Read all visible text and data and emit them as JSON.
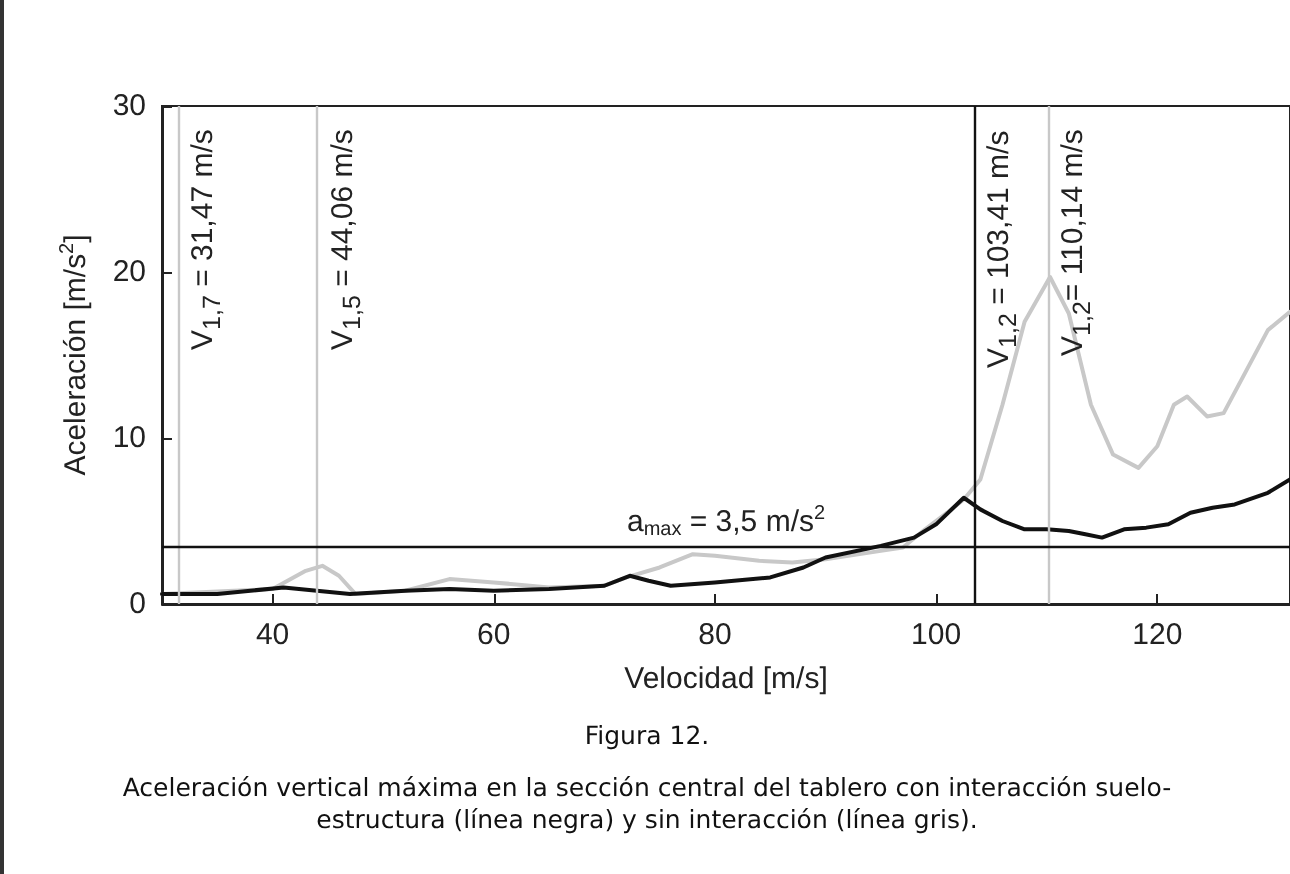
{
  "chart_data": {
    "type": "line",
    "xlabel": "Velocidad [m/s]",
    "ylabel": "Aceleración [m/s$^{2}$]",
    "xlim": [
      30,
      132
    ],
    "xticks": [
      40,
      60,
      80,
      100,
      120
    ],
    "ylim": [
      0,
      30
    ],
    "yticks": [
      0,
      10,
      20,
      30
    ],
    "grid": false,
    "marker": "none",
    "line_style": "solid",
    "series": [
      {
        "color": "#c8c8c8",
        "x": [
          30,
          40,
          43,
          44.5,
          46,
          47.5,
          52,
          56,
          60,
          65,
          70,
          72,
          75,
          78,
          80,
          84,
          87,
          90,
          95,
          97,
          99,
          101,
          102.5,
          104,
          106,
          108,
          110.3,
          112,
          114,
          116,
          118.3,
          120,
          121.5,
          122.7,
          124.5,
          126,
          128,
          130,
          132
        ],
        "values": [
          0.6,
          0.9,
          2.0,
          2.3,
          1.7,
          0.6,
          0.8,
          1.5,
          1.3,
          1.0,
          1.1,
          1.6,
          2.2,
          3.0,
          2.9,
          2.6,
          2.5,
          2.7,
          3.2,
          3.4,
          4.5,
          5.5,
          6.3,
          7.5,
          12,
          17,
          19.7,
          17.5,
          12,
          9,
          8.2,
          9.5,
          12,
          12.5,
          11.3,
          11.5,
          14,
          16.5,
          17.6
        ]
      },
      {
        "color": "#111111",
        "x": [
          30,
          35,
          38,
          41,
          44,
          47,
          52,
          56,
          60,
          65,
          70,
          72.3,
          74,
          76,
          80,
          85,
          88,
          90,
          95,
          98,
          100,
          102.5,
          104,
          106,
          108,
          110,
          112,
          113.5,
          115,
          117,
          119,
          121,
          123,
          125,
          127,
          130,
          132
        ],
        "values": [
          0.6,
          0.6,
          0.8,
          1.0,
          0.8,
          0.6,
          0.8,
          0.9,
          0.8,
          0.9,
          1.1,
          1.7,
          1.4,
          1.1,
          1.3,
          1.6,
          2.2,
          2.8,
          3.5,
          4.0,
          4.8,
          6.4,
          5.7,
          5.0,
          4.5,
          4.5,
          4.4,
          4.2,
          4.0,
          4.5,
          4.6,
          4.8,
          5.5,
          5.8,
          6.0,
          6.7,
          7.5
        ]
      }
    ],
    "ref_lines": [
      {
        "axis": "x",
        "value": 31.47,
        "label": "V$_{1,7}$ = 31,47 m/s",
        "color": "#c8c8c8"
      },
      {
        "axis": "x",
        "value": 44.06,
        "label": "V$_{1,5}$ = 44,06 m/s",
        "color": "#c8c8c8"
      },
      {
        "axis": "x",
        "value": 103.41,
        "label": "V$_{1,2}$ = 103,41 m/s",
        "color": "#111111"
      },
      {
        "axis": "x",
        "value": 110.14,
        "label": "V$_{1,2}$= 110,14 m/s",
        "color": "#c8c8c8"
      },
      {
        "axis": "y",
        "value": 3.5,
        "label": "a$_{max}$ = 3,5 m/s$^{2}$",
        "color": "#111111"
      }
    ],
    "annotations": [
      "Figura 12.",
      "Aceleración vertical máxima en la sección central del tablero con interacción suelo-estructura (línea negra) y sin interacción (línea gris)."
    ]
  }
}
